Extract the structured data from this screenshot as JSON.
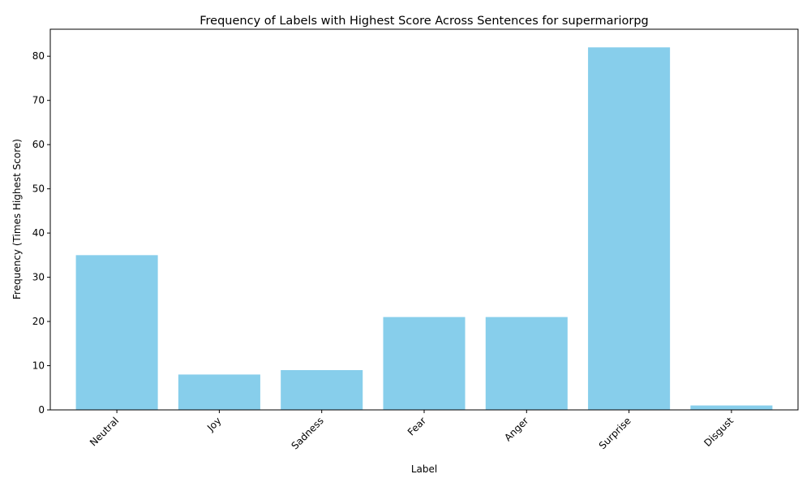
{
  "chart_data": {
    "type": "bar",
    "title": "Frequency of Labels with Highest Score Across Sentences for supermariorpg",
    "xlabel": "Label",
    "ylabel": "Frequency (Times Highest Score)",
    "categories": [
      "Neutral",
      "Joy",
      "Sadness",
      "Fear",
      "Anger",
      "Surprise",
      "Disgust"
    ],
    "values": [
      35,
      8,
      9,
      21,
      21,
      82,
      1
    ],
    "ylim": [
      0,
      86.1
    ],
    "yticks": [
      0,
      10,
      20,
      30,
      40,
      50,
      60,
      70,
      80
    ],
    "bar_color": "#87CEEB",
    "grid": false,
    "legend": "none"
  }
}
